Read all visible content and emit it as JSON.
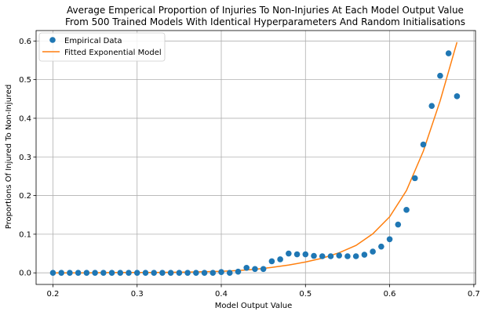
{
  "chart_data": {
    "type": "scatter",
    "title_line1": "Average Emperical Proportion of Injuries To Non-Injuries At Each Model Output Value",
    "title_line2": "From 500 Trained Models With Identical Hyperparameters And Random Initialisations",
    "xlabel": "Model Output Value",
    "ylabel": "Proportions Of Injured To Non-Injured",
    "xlim": [
      0.18,
      0.702
    ],
    "ylim": [
      -0.03,
      0.627
    ],
    "xticks": [
      0.2,
      0.3,
      0.4,
      0.5,
      0.6,
      0.7
    ],
    "xtick_labels": [
      "0.2",
      "0.3",
      "0.4",
      "0.5",
      "0.6",
      "0.7"
    ],
    "yticks": [
      0.0,
      0.1,
      0.2,
      0.3,
      0.4,
      0.5,
      0.6
    ],
    "ytick_labels": [
      "0.0",
      "0.1",
      "0.2",
      "0.3",
      "0.4",
      "0.5",
      "0.6"
    ],
    "grid": true,
    "legend_position": "top-left",
    "series": [
      {
        "name": "Empirical Data",
        "kind": "scatter",
        "color": "#1f77b4",
        "x": [
          0.2,
          0.21,
          0.22,
          0.23,
          0.24,
          0.25,
          0.26,
          0.27,
          0.28,
          0.29,
          0.3,
          0.31,
          0.32,
          0.33,
          0.34,
          0.35,
          0.36,
          0.37,
          0.38,
          0.39,
          0.4,
          0.41,
          0.42,
          0.43,
          0.44,
          0.45,
          0.46,
          0.47,
          0.48,
          0.49,
          0.5,
          0.51,
          0.52,
          0.53,
          0.54,
          0.55,
          0.56,
          0.57,
          0.58,
          0.59,
          0.6,
          0.61,
          0.62,
          0.63,
          0.64,
          0.65,
          0.66,
          0.67,
          0.68
        ],
        "y": [
          0.0,
          0.0,
          0.0,
          0.0,
          0.0,
          0.0,
          0.0,
          0.0,
          0.0,
          0.0,
          0.0,
          0.0,
          0.0,
          0.0,
          0.0,
          0.0,
          0.0,
          0.0,
          0.0,
          0.0,
          0.002,
          0.0,
          0.003,
          0.013,
          0.01,
          0.01,
          0.03,
          0.035,
          0.05,
          0.048,
          0.048,
          0.044,
          0.043,
          0.043,
          0.045,
          0.043,
          0.043,
          0.047,
          0.055,
          0.068,
          0.087,
          0.125,
          0.163,
          0.245,
          0.332,
          0.432,
          0.51,
          0.568,
          0.457
        ]
      },
      {
        "name": "Fitted Exponential Model",
        "kind": "line",
        "color": "#ff7f0e",
        "x": [
          0.2,
          0.24,
          0.28,
          0.32,
          0.36,
          0.4,
          0.42,
          0.44,
          0.46,
          0.48,
          0.5,
          0.52,
          0.54,
          0.56,
          0.58,
          0.6,
          0.62,
          0.64,
          0.66,
          0.68
        ],
        "y": [
          0.0,
          0.0,
          0.001,
          0.001,
          0.002,
          0.004,
          0.006,
          0.009,
          0.014,
          0.02,
          0.028,
          0.038,
          0.052,
          0.071,
          0.101,
          0.145,
          0.213,
          0.315,
          0.445,
          0.597
        ]
      }
    ]
  }
}
